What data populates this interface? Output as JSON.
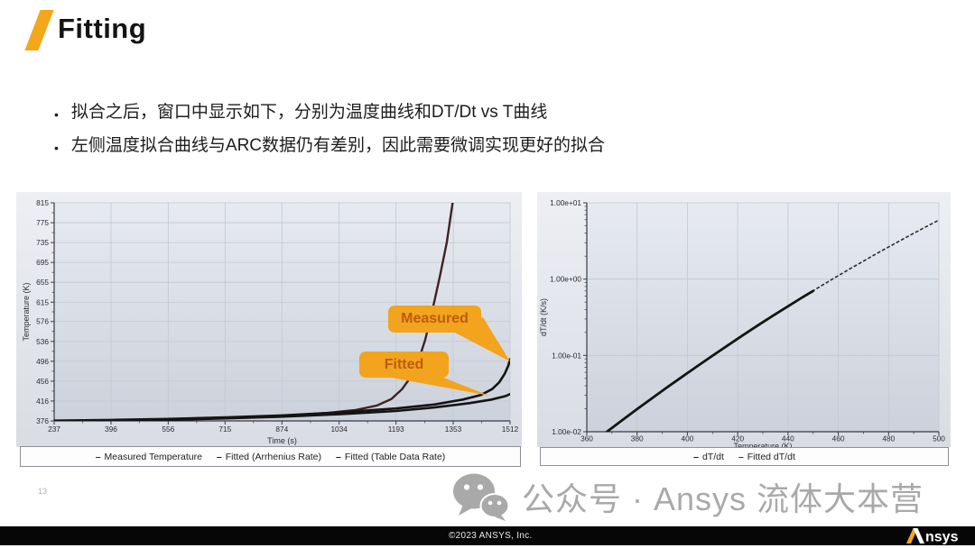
{
  "slide": {
    "title": "Fitting",
    "page_number": "13",
    "bullets": [
      "拟合之后，窗口中显示如下，分别为温度曲线和DT/Dt vs T曲线",
      "左侧温度拟合曲线与ARC数据仍有差别，因此需要微调实现更好的拟合"
    ]
  },
  "callouts": {
    "measured": "Measured",
    "fitted": "Fitted"
  },
  "watermark": {
    "icon": "wechat-icon",
    "text": "公众号 · Ansys 流体大本营"
  },
  "footer": {
    "copyright": "©2023 ANSYS,  Inc.",
    "logo_text": "nsys"
  },
  "colors": {
    "accent_gold": "#F2A41E",
    "measured_line": "#402024",
    "fitted_line": "#141414",
    "grid": "#c3c8d2",
    "axis": "#3a3a42",
    "plot_bg_top": "#e7eaf1",
    "plot_bg_bottom": "#ccd1db"
  },
  "chart_data": [
    {
      "type": "line",
      "title": "",
      "xlabel": "Time (s)",
      "ylabel": "Temperature (K)",
      "xlim": [
        237,
        1512
      ],
      "ylim": [
        376,
        815
      ],
      "ylog": false,
      "grid": true,
      "x_ticks": [
        237,
        396,
        556,
        715,
        874,
        1034,
        1193,
        1353,
        1512
      ],
      "y_ticks": [
        376,
        416,
        456,
        496,
        536,
        576,
        615,
        655,
        695,
        735,
        775,
        815
      ],
      "legend_position": "bottom",
      "legend": [
        {
          "label": "Measured Temperature",
          "color": "#402024"
        },
        {
          "label": "Fitted (Arrhenius Rate)",
          "color": "#141414"
        },
        {
          "label": "Fitted (Table Data Rate)",
          "color": "#141414"
        }
      ],
      "series": [
        {
          "name": "Measured Temperature",
          "color": "#402024",
          "width": 2.4,
          "points": [
            [
              237,
              376
            ],
            [
              400,
              377
            ],
            [
              556,
              379
            ],
            [
              715,
              382
            ],
            [
              874,
              386
            ],
            [
              1000,
              392
            ],
            [
              1080,
              398
            ],
            [
              1140,
              407
            ],
            [
              1180,
              420
            ],
            [
              1210,
              440
            ],
            [
              1235,
              465
            ],
            [
              1255,
              495
            ],
            [
              1275,
              540
            ],
            [
              1295,
              600
            ],
            [
              1315,
              665
            ],
            [
              1335,
              735
            ],
            [
              1352,
              818
            ]
          ]
        },
        {
          "name": "Fitted (Arrhenius Rate)",
          "color": "#141414",
          "width": 2.6,
          "points": [
            [
              237,
              376.5
            ],
            [
              400,
              378
            ],
            [
              556,
              380
            ],
            [
              715,
              383
            ],
            [
              874,
              387
            ],
            [
              1034,
              393
            ],
            [
              1193,
              401
            ],
            [
              1300,
              409
            ],
            [
              1380,
              419
            ],
            [
              1430,
              428
            ],
            [
              1462,
              440
            ],
            [
              1482,
              454
            ],
            [
              1497,
              471
            ],
            [
              1507,
              487
            ],
            [
              1512,
              500
            ]
          ]
        },
        {
          "name": "Fitted (Table Data Rate)",
          "color": "#141414",
          "width": 2.6,
          "points": [
            [
              237,
              375.5
            ],
            [
              400,
              376.5
            ],
            [
              556,
              378
            ],
            [
              715,
              381
            ],
            [
              874,
              384.5
            ],
            [
              1034,
              389.5
            ],
            [
              1193,
              396
            ],
            [
              1300,
              403
            ],
            [
              1400,
              412
            ],
            [
              1460,
              419
            ],
            [
              1500,
              426
            ],
            [
              1512,
              430
            ]
          ]
        }
      ]
    },
    {
      "type": "line",
      "title": "",
      "xlabel": "Temperature (K)",
      "ylabel": "dT/dt (K/s)",
      "xlim": [
        360,
        500
      ],
      "ylim": [
        0.01,
        10
      ],
      "ylog": true,
      "grid": true,
      "x_ticks": [
        360,
        380,
        400,
        420,
        440,
        460,
        480,
        500
      ],
      "y_ticks": [
        "1.00e+01",
        "1.00e+00",
        "1.00e-01",
        "1.00e-02"
      ],
      "legend_position": "bottom",
      "legend": [
        {
          "label": "dT/dt",
          "color": "#141414"
        },
        {
          "label": "Fitted dT/dt",
          "color": "#333333"
        }
      ],
      "series": [
        {
          "name": "Fitted dT/dt",
          "color": "#2a2a2a",
          "width": 1.6,
          "dash": "2.5 3.5",
          "points": [
            [
              368,
              0.01
            ],
            [
              374,
              0.0141
            ],
            [
              380,
              0.0198
            ],
            [
              386,
              0.0276
            ],
            [
              392,
              0.0383
            ],
            [
              398,
              0.0528
            ],
            [
              404,
              0.0726
            ],
            [
              410,
              0.0992
            ],
            [
              416,
              0.135
            ],
            [
              422,
              0.183
            ],
            [
              428,
              0.247
            ],
            [
              434,
              0.331
            ],
            [
              440,
              0.441
            ],
            [
              446,
              0.585
            ],
            [
              452,
              0.772
            ],
            [
              458,
              1.015
            ],
            [
              464,
              1.325
            ],
            [
              470,
              1.722
            ],
            [
              476,
              2.228
            ],
            [
              482,
              2.867
            ],
            [
              488,
              3.673
            ],
            [
              494,
              4.677
            ],
            [
              500,
              5.93
            ]
          ]
        },
        {
          "name": "dT/dt",
          "color": "#141414",
          "width": 2.8,
          "points": [
            [
              368,
              0.01
            ],
            [
              374,
              0.0141
            ],
            [
              380,
              0.0198
            ],
            [
              386,
              0.0276
            ],
            [
              392,
              0.0383
            ],
            [
              398,
              0.0528
            ],
            [
              404,
              0.0726
            ],
            [
              410,
              0.0992
            ],
            [
              416,
              0.135
            ],
            [
              422,
              0.183
            ],
            [
              428,
              0.247
            ],
            [
              434,
              0.331
            ],
            [
              440,
              0.441
            ],
            [
              446,
              0.585
            ],
            [
              450,
              0.7
            ]
          ]
        }
      ]
    }
  ]
}
